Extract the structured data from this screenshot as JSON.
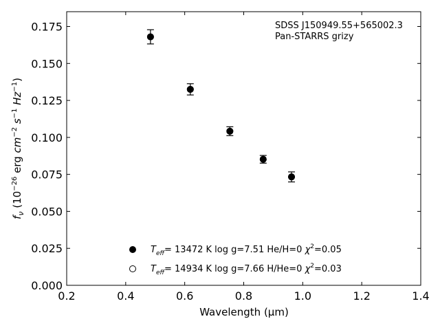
{
  "chart_data": {
    "type": "scatter",
    "annotation": [
      "SDSS J150949.55+565002.3",
      "Pan-STARRS grizy"
    ],
    "xlabel": "Wavelength (μm)",
    "ylabel": "f_ν (10^-26 erg cm^-2 s^-1 Hz^-1)",
    "xlim": [
      0.2,
      1.4
    ],
    "ylim": [
      0.0,
      0.185
    ],
    "xticks": [
      "0.2",
      "0.4",
      "0.6",
      "0.8",
      "1.0",
      "1.2",
      "1.4"
    ],
    "yticks": [
      "0.000",
      "0.025",
      "0.050",
      "0.075",
      "0.100",
      "0.125",
      "0.150",
      "0.175"
    ],
    "grid": false,
    "legend_position": "lower-center",
    "series": [
      {
        "name": "T_eff= 13472 K  log g=7.51  He/H=0  χ²=0.05",
        "marker": "filled-circle",
        "color": "#000000",
        "x": [
          0.484,
          0.619,
          0.753,
          0.866,
          0.962
        ],
        "y": [
          0.168,
          0.1325,
          0.1042,
          0.0852,
          0.0733
        ],
        "err": [
          0.0048,
          0.0038,
          0.003,
          0.0026,
          0.0034
        ]
      },
      {
        "name": "T_eff= 14934 K  log g=7.66  H/He=0  χ²=0.03",
        "marker": "open-circle",
        "color": "#000000",
        "x": [
          0.484,
          0.619,
          0.753,
          0.866,
          0.962
        ],
        "y": [
          0.168,
          0.1325,
          0.1042,
          0.0852,
          0.0733
        ]
      }
    ],
    "legend_entries": [
      {
        "marker": "filled-circle",
        "label": {
          "T": "T",
          "sub": "eff",
          "rest": "= 13472 K  log g=7.51  He/H=0  ",
          "chi": "χ",
          "sup": "2",
          "end": "=0.05"
        }
      },
      {
        "marker": "open-circle",
        "label": {
          "T": "T",
          "sub": "eff",
          "rest": "= 14934 K  log g=7.66  H/He=0  ",
          "chi": "χ",
          "sup": "2",
          "end": "=0.03"
        }
      }
    ]
  }
}
